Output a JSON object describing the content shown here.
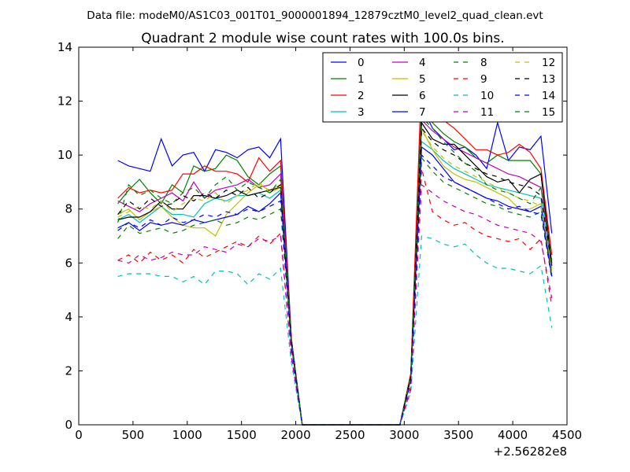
{
  "chart_data": {
    "type": "line",
    "suptitle": "Data file: modeM0/AS1C03_001T01_9000001894_12879cztM0_level2_quad_clean.evt",
    "title": "Quadrant 2 module wise count rates with 100.0s bins.",
    "xlabel": "",
    "ylabel": "",
    "x_offset_label": "+2.56282e8",
    "xlim": [
      0,
      4500
    ],
    "ylim": [
      0,
      14
    ],
    "x_ticks": [
      "0",
      "500",
      "1000",
      "1500",
      "2000",
      "2500",
      "3000",
      "3500",
      "4000",
      "4500"
    ],
    "y_ticks": [
      "0",
      "2",
      "4",
      "6",
      "8",
      "10",
      "12",
      "14"
    ],
    "grid": false,
    "legend_position": "top-right",
    "x": [
      360,
      460,
      560,
      660,
      760,
      860,
      960,
      1060,
      1160,
      1260,
      1360,
      1460,
      1560,
      1660,
      1760,
      1860,
      1960,
      2060,
      2160,
      2260,
      2360,
      2460,
      2560,
      2660,
      2760,
      2860,
      2960,
      3060,
      3160,
      3260,
      3360,
      3460,
      3560,
      3660,
      3760,
      3860,
      3960,
      4060,
      4160,
      4260,
      4360
    ],
    "series": [
      {
        "name": "0",
        "color": "#0000ff",
        "style": "solid",
        "values": [
          9.8,
          9.6,
          9.5,
          9.4,
          10.6,
          9.6,
          10.0,
          10.1,
          9.4,
          10.2,
          10.1,
          9.9,
          10.2,
          10.3,
          9.9,
          10.6,
          3.2,
          0,
          0,
          0,
          0,
          0,
          0,
          0,
          0,
          0,
          0,
          1.8,
          11.8,
          11.0,
          10.6,
          10.2,
          10.3,
          10.0,
          9.5,
          11.2,
          9.8,
          10.3,
          10.2,
          10.7,
          7.1
        ]
      },
      {
        "name": "1",
        "color": "#008000",
        "style": "solid",
        "values": [
          8.2,
          8.7,
          9.1,
          8.6,
          8.2,
          8.9,
          8.6,
          9.6,
          9.4,
          9.5,
          10.0,
          9.8,
          9.2,
          8.9,
          9.3,
          9.6,
          3.0,
          0,
          0,
          0,
          0,
          0,
          0,
          0,
          0,
          0,
          0,
          1.8,
          11.9,
          11.2,
          10.8,
          10.5,
          10.3,
          9.9,
          9.7,
          10.0,
          9.8,
          9.8,
          9.8,
          9.3,
          6.0
        ]
      },
      {
        "name": "2",
        "color": "#ff0000",
        "style": "solid",
        "values": [
          8.4,
          8.8,
          8.6,
          8.7,
          8.6,
          8.7,
          9.3,
          9.3,
          9.6,
          9.4,
          9.4,
          9.3,
          9.0,
          9.9,
          9.4,
          9.8,
          3.2,
          0,
          0,
          0,
          0,
          0,
          0,
          0,
          0,
          0,
          0,
          1.9,
          12.9,
          11.5,
          11.3,
          11.0,
          10.6,
          10.2,
          10.2,
          10.0,
          10.1,
          10.4,
          10.1,
          9.5,
          6.3
        ]
      },
      {
        "name": "3",
        "color": "#00bfbf",
        "style": "solid",
        "values": [
          7.6,
          7.8,
          7.5,
          7.8,
          8.1,
          7.8,
          7.8,
          7.7,
          8.2,
          8.4,
          8.3,
          8.5,
          8.5,
          8.6,
          8.4,
          8.7,
          3.0,
          0,
          0,
          0,
          0,
          0,
          0,
          0,
          0,
          0,
          0,
          1.7,
          10.5,
          10.2,
          9.8,
          9.5,
          9.3,
          9.1,
          8.9,
          8.8,
          8.7,
          8.6,
          8.5,
          8.4,
          5.8
        ]
      },
      {
        "name": "4",
        "color": "#bf00bf",
        "style": "solid",
        "values": [
          8.3,
          8.1,
          7.9,
          8.2,
          8.4,
          8.6,
          8.3,
          9.0,
          8.4,
          8.7,
          8.8,
          8.9,
          9.1,
          8.8,
          8.9,
          9.3,
          3.1,
          0,
          0,
          0,
          0,
          0,
          0,
          0,
          0,
          0,
          0,
          1.8,
          11.3,
          10.9,
          10.6,
          10.3,
          10.1,
          9.9,
          9.7,
          9.5,
          9.3,
          9.2,
          9.0,
          8.8,
          6.0
        ]
      },
      {
        "name": "5",
        "color": "#bfbf00",
        "style": "solid",
        "values": [
          7.8,
          8.0,
          7.6,
          7.9,
          8.1,
          7.7,
          7.4,
          7.3,
          7.3,
          7.0,
          7.8,
          8.2,
          8.6,
          8.9,
          8.7,
          8.9,
          3.0,
          0,
          0,
          0,
          0,
          0,
          0,
          0,
          0,
          0,
          0,
          1.7,
          11.0,
          10.2,
          9.6,
          9.3,
          9.1,
          9.0,
          8.8,
          8.6,
          8.4,
          8.0,
          8.0,
          8.2,
          5.7
        ]
      },
      {
        "name": "6",
        "color": "#000000",
        "style": "solid",
        "values": [
          7.6,
          7.7,
          7.7,
          7.9,
          8.3,
          8.0,
          8.0,
          8.5,
          8.5,
          8.4,
          8.5,
          8.7,
          8.5,
          8.6,
          8.7,
          8.8,
          3.1,
          0,
          0,
          0,
          0,
          0,
          0,
          0,
          0,
          0,
          0,
          1.8,
          11.2,
          10.6,
          10.4,
          10.4,
          10.0,
          9.6,
          9.2,
          9.0,
          9.1,
          8.6,
          9.1,
          9.3,
          5.9
        ]
      },
      {
        "name": "7",
        "color": "#0000ff",
        "style": "solid",
        "values": [
          7.3,
          7.5,
          7.2,
          7.5,
          7.4,
          7.5,
          7.4,
          7.6,
          7.5,
          7.6,
          7.7,
          7.8,
          8.1,
          7.9,
          8.2,
          8.6,
          3.0,
          0,
          0,
          0,
          0,
          0,
          0,
          0,
          0,
          0,
          0,
          1.7,
          10.3,
          10.0,
          9.5,
          9.0,
          8.8,
          8.6,
          8.4,
          8.3,
          8.1,
          8.0,
          7.9,
          8.1,
          5.5
        ]
      },
      {
        "name": "8",
        "color": "#008000",
        "style": "dashed",
        "values": [
          6.9,
          7.4,
          7.1,
          7.2,
          7.3,
          7.1,
          7.2,
          7.4,
          7.5,
          7.6,
          7.4,
          7.5,
          7.7,
          7.6,
          7.8,
          8.0,
          2.9,
          0,
          0,
          0,
          0,
          0,
          0,
          0,
          0,
          0,
          0,
          1.6,
          9.9,
          9.4,
          9.0,
          8.8,
          8.6,
          8.4,
          8.2,
          8.1,
          7.9,
          7.8,
          7.7,
          7.9,
          5.4
        ]
      },
      {
        "name": "9",
        "color": "#ff0000",
        "style": "dashed",
        "values": [
          6.1,
          6.3,
          6.0,
          6.4,
          6.1,
          6.3,
          6.0,
          6.5,
          6.2,
          6.4,
          6.6,
          6.8,
          6.6,
          7.0,
          6.7,
          7.1,
          2.6,
          0,
          0,
          0,
          0,
          0,
          0,
          0,
          0,
          0,
          0,
          1.4,
          9.5,
          7.9,
          7.6,
          7.4,
          7.5,
          7.2,
          7.0,
          6.9,
          6.8,
          6.9,
          6.5,
          6.9,
          4.4
        ]
      },
      {
        "name": "10",
        "color": "#00bfbf",
        "style": "dashed",
        "values": [
          5.5,
          5.6,
          5.6,
          5.6,
          5.5,
          5.5,
          5.3,
          5.5,
          5.2,
          5.7,
          5.7,
          5.6,
          5.2,
          5.6,
          5.4,
          5.8,
          2.3,
          0,
          0,
          0,
          0,
          0,
          0,
          0,
          0,
          0,
          0,
          1.2,
          7.0,
          6.9,
          6.7,
          6.6,
          6.7,
          6.3,
          6.0,
          5.8,
          5.8,
          5.7,
          5.6,
          5.9,
          3.6
        ]
      },
      {
        "name": "11",
        "color": "#bf00bf",
        "style": "dashed",
        "values": [
          6.1,
          6.0,
          6.3,
          6.1,
          6.2,
          6.4,
          6.3,
          6.3,
          6.6,
          6.5,
          6.4,
          6.7,
          6.6,
          6.9,
          6.8,
          7.0,
          2.5,
          0,
          0,
          0,
          0,
          0,
          0,
          0,
          0,
          0,
          0,
          1.3,
          8.9,
          8.6,
          8.3,
          8.1,
          7.9,
          7.8,
          7.6,
          7.4,
          7.3,
          7.2,
          7.1,
          6.8,
          4.7
        ]
      },
      {
        "name": "12",
        "color": "#bfbf00",
        "style": "dashed",
        "values": [
          7.7,
          7.9,
          8.1,
          8.0,
          8.3,
          7.9,
          8.2,
          8.4,
          8.3,
          8.6,
          8.2,
          8.5,
          8.7,
          9.0,
          8.6,
          8.8,
          3.0,
          0,
          0,
          0,
          0,
          0,
          0,
          0,
          0,
          0,
          0,
          1.7,
          10.9,
          10.3,
          9.9,
          9.6,
          9.4,
          9.2,
          9.0,
          8.8,
          8.6,
          8.4,
          8.3,
          8.1,
          5.8
        ]
      },
      {
        "name": "13",
        "color": "#000000",
        "style": "dashed",
        "values": [
          7.8,
          8.3,
          8.0,
          8.4,
          8.1,
          8.2,
          8.5,
          8.3,
          8.6,
          8.4,
          8.7,
          8.5,
          8.8,
          8.4,
          8.6,
          8.9,
          3.0,
          0,
          0,
          0,
          0,
          0,
          0,
          0,
          0,
          0,
          0,
          1.8,
          11.0,
          10.5,
          10.2,
          10.0,
          9.7,
          9.5,
          9.3,
          9.2,
          9.0,
          8.9,
          8.8,
          8.5,
          5.9
        ]
      },
      {
        "name": "14",
        "color": "#0000ff",
        "style": "dashed",
        "values": [
          7.2,
          7.5,
          7.3,
          7.6,
          7.4,
          7.7,
          7.5,
          7.6,
          7.8,
          7.7,
          7.9,
          7.8,
          8.0,
          7.9,
          8.1,
          8.3,
          2.9,
          0,
          0,
          0,
          0,
          0,
          0,
          0,
          0,
          0,
          0,
          1.6,
          10.0,
          9.6,
          9.2,
          9.0,
          8.8,
          8.6,
          8.4,
          8.2,
          8.0,
          8.1,
          7.9,
          7.8,
          5.5
        ]
      },
      {
        "name": "15",
        "color": "#008000",
        "style": "dashed",
        "values": [
          7.5,
          8.9,
          8.5,
          8.7,
          8.4,
          8.2,
          8.6,
          8.8,
          8.4,
          8.9,
          9.2,
          8.7,
          9.0,
          8.8,
          8.6,
          9.1,
          3.1,
          0,
          0,
          0,
          0,
          0,
          0,
          0,
          0,
          0,
          0,
          1.8,
          11.4,
          11.0,
          10.5,
          10.1,
          9.7,
          9.4,
          8.9,
          8.7,
          8.6,
          8.4,
          8.2,
          8.8,
          6.1
        ]
      }
    ]
  }
}
